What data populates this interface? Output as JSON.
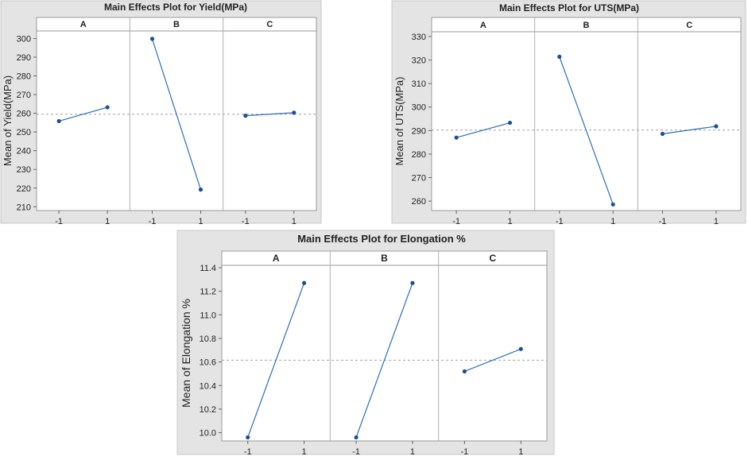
{
  "chart_data": [
    {
      "type": "line",
      "title": "Main Effects Plot for Yield(MPa)",
      "ylabel": "Mean of Yield(MPa)",
      "panels": [
        "A",
        "B",
        "C"
      ],
      "x_ticks": [
        "-1",
        "1"
      ],
      "y_ticks": [
        210,
        220,
        230,
        240,
        250,
        260,
        270,
        280,
        290,
        300
      ],
      "ylim": [
        208,
        304
      ],
      "mean_line": 259.5,
      "series": [
        {
          "panel": "A",
          "x": [
            "-1",
            "1"
          ],
          "y": [
            255.8,
            263.2
          ]
        },
        {
          "panel": "B",
          "x": [
            "-1",
            "1"
          ],
          "y": [
            299.8,
            219.2
          ]
        },
        {
          "panel": "C",
          "x": [
            "-1",
            "1"
          ],
          "y": [
            258.7,
            260.3
          ]
        }
      ],
      "grid": false,
      "colors": {
        "line": "#2a6fbd",
        "marker": "#1a4f9a",
        "frame_bg": "#e4e4e4"
      }
    },
    {
      "type": "line",
      "title": "Main Effects Plot for UTS(MPa)",
      "ylabel": "Mean of UTS(MPa)",
      "panels": [
        "A",
        "B",
        "C"
      ],
      "x_ticks": [
        "-1",
        "1"
      ],
      "y_ticks": [
        260,
        270,
        280,
        290,
        300,
        310,
        320,
        330
      ],
      "ylim": [
        256,
        332
      ],
      "mean_line": 290.2,
      "series": [
        {
          "panel": "A",
          "x": [
            "-1",
            "1"
          ],
          "y": [
            287.0,
            293.3
          ]
        },
        {
          "panel": "B",
          "x": [
            "-1",
            "1"
          ],
          "y": [
            321.4,
            258.6
          ]
        },
        {
          "panel": "C",
          "x": [
            "-1",
            "1"
          ],
          "y": [
            288.6,
            291.8
          ]
        }
      ],
      "grid": false,
      "colors": {
        "line": "#2a6fbd",
        "marker": "#1a4f9a",
        "frame_bg": "#e4e4e4"
      }
    },
    {
      "type": "line",
      "title": "Main Effects Plot for Elongation %",
      "ylabel": "Mean of Elongation %",
      "panels": [
        "A",
        "B",
        "C"
      ],
      "x_ticks": [
        "-1",
        "1"
      ],
      "y_ticks": [
        "10.0",
        "10.2",
        "10.4",
        "10.6",
        "10.8",
        "11.0",
        "11.2",
        "11.4"
      ],
      "ylim": [
        9.93,
        11.42
      ],
      "mean_line": 10.615,
      "series": [
        {
          "panel": "A",
          "x": [
            "-1",
            "1"
          ],
          "y": [
            9.96,
            11.27
          ]
        },
        {
          "panel": "B",
          "x": [
            "-1",
            "1"
          ],
          "y": [
            9.96,
            11.27
          ]
        },
        {
          "panel": "C",
          "x": [
            "-1",
            "1"
          ],
          "y": [
            10.52,
            10.71
          ]
        }
      ],
      "grid": false,
      "colors": {
        "line": "#2a6fbd",
        "marker": "#1a4f9a",
        "frame_bg": "#e4e4e4"
      }
    }
  ]
}
